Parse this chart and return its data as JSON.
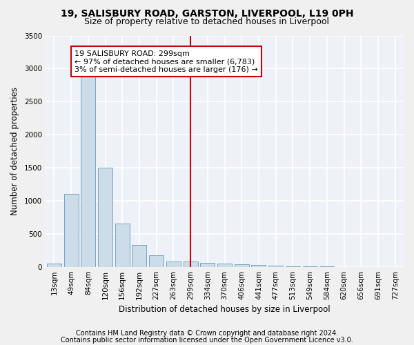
{
  "title1": "19, SALISBURY ROAD, GARSTON, LIVERPOOL, L19 0PH",
  "title2": "Size of property relative to detached houses in Liverpool",
  "xlabel": "Distribution of detached houses by size in Liverpool",
  "ylabel": "Number of detached properties",
  "categories": [
    "13sqm",
    "49sqm",
    "84sqm",
    "120sqm",
    "156sqm",
    "192sqm",
    "227sqm",
    "263sqm",
    "299sqm",
    "334sqm",
    "370sqm",
    "406sqm",
    "441sqm",
    "477sqm",
    "513sqm",
    "549sqm",
    "584sqm",
    "620sqm",
    "656sqm",
    "691sqm",
    "727sqm"
  ],
  "values": [
    50,
    1100,
    2950,
    1500,
    650,
    330,
    175,
    85,
    85,
    60,
    45,
    35,
    25,
    20,
    5,
    3,
    2,
    1,
    1,
    0,
    0
  ],
  "bar_color": "#ccdce8",
  "bar_edge_color": "#6699bb",
  "vline_x_index": 8,
  "vline_color": "#cc0000",
  "annotation_text": "19 SALISBURY ROAD: 299sqm\n← 97% of detached houses are smaller (6,783)\n3% of semi-detached houses are larger (176) →",
  "annotation_box_color": "#cc0000",
  "ylim": [
    0,
    3500
  ],
  "yticks": [
    0,
    500,
    1000,
    1500,
    2000,
    2500,
    3000,
    3500
  ],
  "footer1": "Contains HM Land Registry data © Crown copyright and database right 2024.",
  "footer2": "Contains public sector information licensed under the Open Government Licence v3.0.",
  "fig_bg_color": "#f0f0f0",
  "plot_bg_color": "#eef2f8",
  "grid_color": "#ffffff",
  "title1_fontsize": 10,
  "title2_fontsize": 9,
  "axis_label_fontsize": 8.5,
  "tick_fontsize": 7.5,
  "annotation_fontsize": 8,
  "footer_fontsize": 7
}
